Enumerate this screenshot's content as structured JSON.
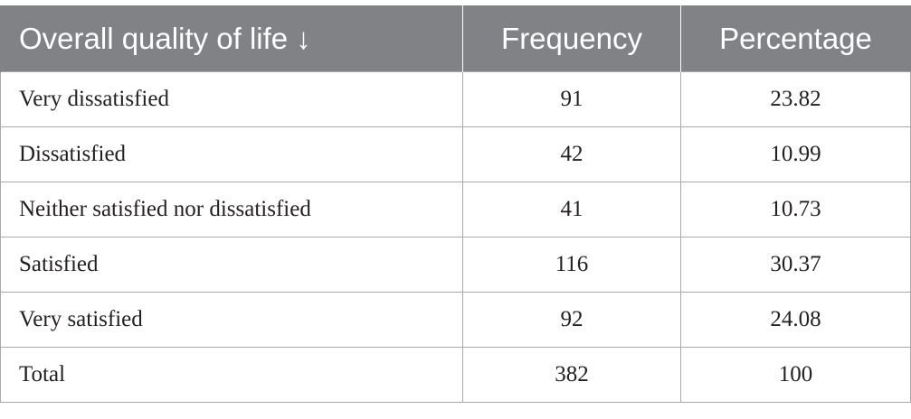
{
  "table": {
    "headers": [
      "Overall quality of life ↓",
      "Frequency",
      "Percentage"
    ],
    "rows": [
      {
        "label": "Very dissatisfied",
        "frequency": "91",
        "percentage": "23.82"
      },
      {
        "label": "Dissatisfied",
        "frequency": "42",
        "percentage": "10.99"
      },
      {
        "label": "Neither satisfied nor dissatisfied",
        "frequency": "41",
        "percentage": "10.73"
      },
      {
        "label": "Satisfied",
        "frequency": "116",
        "percentage": "30.37"
      },
      {
        "label": "Very satisfied",
        "frequency": "92",
        "percentage": "24.08"
      },
      {
        "label": "Total",
        "frequency": "382",
        "percentage": "100"
      }
    ]
  },
  "colors": {
    "header_bg": "#808285",
    "header_text": "#ffffff",
    "border": "#a7a9ac",
    "body_text": "#231f20"
  }
}
